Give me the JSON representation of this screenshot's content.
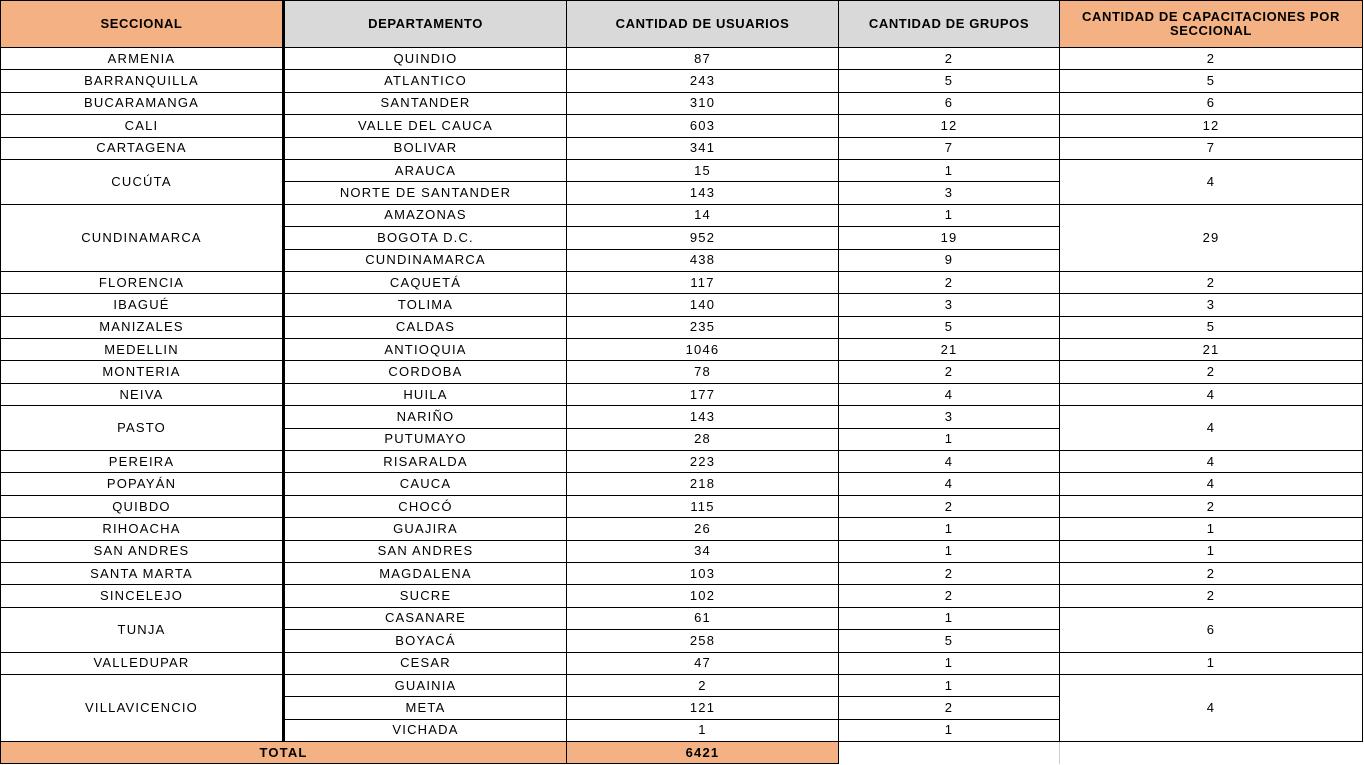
{
  "headers": {
    "seccional": "SECCIONAL",
    "departamento": "DEPARTAMENTO",
    "usuarios": "CANTIDAD DE USUARIOS",
    "grupos": "CANTIDAD DE GRUPOS",
    "capacitaciones": "CANTIDAD DE CAPACITACIONES POR SECCIONAL"
  },
  "colors": {
    "header_orange": "#F4B183",
    "header_gray": "#D9D9D9"
  },
  "groups": [
    {
      "seccional": "ARMENIA",
      "capacitaciones": "2",
      "departamentos": [
        {
          "nombre": "QUINDIO",
          "usuarios": "87",
          "grupos": "2"
        }
      ]
    },
    {
      "seccional": "BARRANQUILLA",
      "capacitaciones": "5",
      "departamentos": [
        {
          "nombre": "ATLANTICO",
          "usuarios": "243",
          "grupos": "5"
        }
      ]
    },
    {
      "seccional": "BUCARAMANGA",
      "capacitaciones": "6",
      "departamentos": [
        {
          "nombre": "SANTANDER",
          "usuarios": "310",
          "grupos": "6"
        }
      ]
    },
    {
      "seccional": "CALI",
      "capacitaciones": "12",
      "departamentos": [
        {
          "nombre": "VALLE DEL CAUCA",
          "usuarios": "603",
          "grupos": "12"
        }
      ]
    },
    {
      "seccional": "CARTAGENA",
      "capacitaciones": "7",
      "departamentos": [
        {
          "nombre": "BOLIVAR",
          "usuarios": "341",
          "grupos": "7"
        }
      ]
    },
    {
      "seccional": "CUCÚTA",
      "capacitaciones": "4",
      "departamentos": [
        {
          "nombre": "ARAUCA",
          "usuarios": "15",
          "grupos": "1"
        },
        {
          "nombre": "NORTE DE SANTANDER",
          "usuarios": "143",
          "grupos": "3"
        }
      ]
    },
    {
      "seccional": "CUNDINAMARCA",
      "capacitaciones": "29",
      "departamentos": [
        {
          "nombre": "AMAZONAS",
          "usuarios": "14",
          "grupos": "1"
        },
        {
          "nombre": "BOGOTA D.C.",
          "usuarios": "952",
          "grupos": "19"
        },
        {
          "nombre": "CUNDINAMARCA",
          "usuarios": "438",
          "grupos": "9"
        }
      ]
    },
    {
      "seccional": "FLORENCIA",
      "capacitaciones": "2",
      "departamentos": [
        {
          "nombre": "CAQUETÁ",
          "usuarios": "117",
          "grupos": "2"
        }
      ]
    },
    {
      "seccional": "IBAGUÉ",
      "capacitaciones": "3",
      "departamentos": [
        {
          "nombre": "TOLIMA",
          "usuarios": "140",
          "grupos": "3"
        }
      ]
    },
    {
      "seccional": "MANIZALES",
      "capacitaciones": "5",
      "departamentos": [
        {
          "nombre": "CALDAS",
          "usuarios": "235",
          "grupos": "5"
        }
      ]
    },
    {
      "seccional": "MEDELLIN",
      "capacitaciones": "21",
      "departamentos": [
        {
          "nombre": "ANTIOQUIA",
          "usuarios": "1046",
          "grupos": "21"
        }
      ]
    },
    {
      "seccional": "MONTERIA",
      "capacitaciones": "2",
      "departamentos": [
        {
          "nombre": "CORDOBA",
          "usuarios": "78",
          "grupos": "2"
        }
      ]
    },
    {
      "seccional": "NEIVA",
      "capacitaciones": "4",
      "departamentos": [
        {
          "nombre": "HUILA",
          "usuarios": "177",
          "grupos": "4"
        }
      ]
    },
    {
      "seccional": "PASTO",
      "capacitaciones": "4",
      "departamentos": [
        {
          "nombre": "NARIÑO",
          "usuarios": "143",
          "grupos": "3"
        },
        {
          "nombre": "PUTUMAYO",
          "usuarios": "28",
          "grupos": "1"
        }
      ]
    },
    {
      "seccional": "PEREIRA",
      "capacitaciones": "4",
      "departamentos": [
        {
          "nombre": "RISARALDA",
          "usuarios": "223",
          "grupos": "4"
        }
      ]
    },
    {
      "seccional": "POPAYÁN",
      "capacitaciones": "4",
      "departamentos": [
        {
          "nombre": "CAUCA",
          "usuarios": "218",
          "grupos": "4"
        }
      ]
    },
    {
      "seccional": "QUIBDO",
      "capacitaciones": "2",
      "departamentos": [
        {
          "nombre": "CHOCÓ",
          "usuarios": "115",
          "grupos": "2"
        }
      ]
    },
    {
      "seccional": "RIHOACHA",
      "capacitaciones": "1",
      "departamentos": [
        {
          "nombre": "GUAJIRA",
          "usuarios": "26",
          "grupos": "1"
        }
      ]
    },
    {
      "seccional": "SAN ANDRES",
      "capacitaciones": "1",
      "departamentos": [
        {
          "nombre": "SAN ANDRES",
          "usuarios": "34",
          "grupos": "1"
        }
      ]
    },
    {
      "seccional": "SANTA MARTA",
      "capacitaciones": "2",
      "departamentos": [
        {
          "nombre": "MAGDALENA",
          "usuarios": "103",
          "grupos": "2"
        }
      ]
    },
    {
      "seccional": "SINCELEJO",
      "capacitaciones": "2",
      "departamentos": [
        {
          "nombre": "SUCRE",
          "usuarios": "102",
          "grupos": "2"
        }
      ]
    },
    {
      "seccional": "TUNJA",
      "capacitaciones": "6",
      "departamentos": [
        {
          "nombre": "CASANARE",
          "usuarios": "61",
          "grupos": "1"
        },
        {
          "nombre": "BOYACÁ",
          "usuarios": "258",
          "grupos": "5"
        }
      ]
    },
    {
      "seccional": "VALLEDUPAR",
      "capacitaciones": "1",
      "departamentos": [
        {
          "nombre": "CESAR",
          "usuarios": "47",
          "grupos": "1"
        }
      ]
    },
    {
      "seccional": "VILLAVICENCIO",
      "capacitaciones": "4",
      "departamentos": [
        {
          "nombre": "GUAINIA",
          "usuarios": "2",
          "grupos": "1"
        },
        {
          "nombre": "META",
          "usuarios": "121",
          "grupos": "2"
        },
        {
          "nombre": "VICHADA",
          "usuarios": "1",
          "grupos": "1"
        }
      ]
    }
  ],
  "total": {
    "label": "TOTAL",
    "usuarios": "6421"
  }
}
